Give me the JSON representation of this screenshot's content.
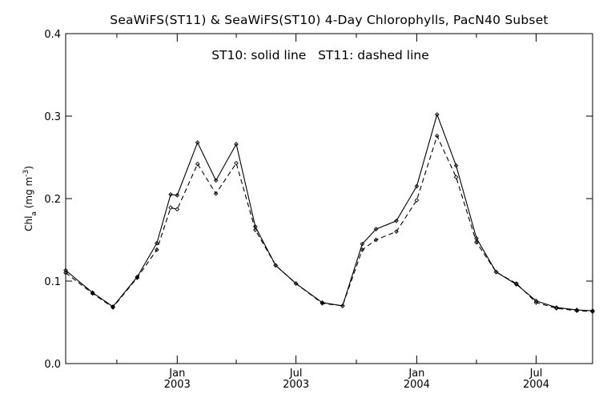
{
  "chart_data": {
    "type": "line",
    "title": "SeaWiFS(ST11) & SeaWiFS(ST10) 4-Day Chlorophylls, PacN40 Subset",
    "annotation": "ST10: solid line   ST11: dashed line",
    "ylabel": {
      "base": "Chl",
      "sub": "a",
      "mid": " (mg m",
      "sup": "-3",
      "end": ")"
    },
    "xlim": [
      "2002-07-15",
      "2004-09-25"
    ],
    "ylim": [
      0.0,
      0.4
    ],
    "yticks": [
      {
        "value": 0.0,
        "label": "0.0"
      },
      {
        "value": 0.1,
        "label": "0.1"
      },
      {
        "value": 0.2,
        "label": "0.2"
      },
      {
        "value": 0.3,
        "label": "0.3"
      },
      {
        "value": 0.4,
        "label": "0.4"
      }
    ],
    "xticks_major": [
      {
        "date": "2003-01-01",
        "label1": "Jan",
        "label2": "2003"
      },
      {
        "date": "2003-07-01",
        "label1": "Jul",
        "label2": "2003"
      },
      {
        "date": "2004-01-01",
        "label1": "Jan",
        "label2": "2004"
      },
      {
        "date": "2004-07-01",
        "label1": "Jul",
        "label2": "2004"
      }
    ],
    "xticks_minor": [
      "2002-10-01",
      "2003-04-01",
      "2003-10-01",
      "2004-04-01"
    ],
    "series": [
      {
        "name": "ST10",
        "style": "solid",
        "x": [
          "2002-07-15",
          "2002-08-25",
          "2002-09-25",
          "2002-11-01",
          "2002-12-01",
          "2002-12-22",
          "2003-01-01",
          "2003-02-01",
          "2003-03-01",
          "2003-04-01",
          "2003-04-30",
          "2003-05-31",
          "2003-07-01",
          "2003-08-10",
          "2003-09-10",
          "2003-10-10",
          "2003-10-31",
          "2003-12-01",
          "2004-01-01",
          "2004-02-01",
          "2004-03-01",
          "2004-04-01",
          "2004-05-01",
          "2004-06-01",
          "2004-07-01",
          "2004-08-01",
          "2004-09-01",
          "2004-09-25"
        ],
        "y": [
          0.113,
          0.086,
          0.069,
          0.105,
          0.146,
          0.205,
          0.204,
          0.268,
          0.222,
          0.266,
          0.166,
          0.119,
          0.097,
          0.074,
          0.07,
          0.145,
          0.163,
          0.173,
          0.215,
          0.302,
          0.24,
          0.152,
          0.111,
          0.096,
          0.076,
          0.068,
          0.065,
          0.064
        ]
      },
      {
        "name": "ST11",
        "style": "dashed",
        "x": [
          "2002-07-15",
          "2002-08-25",
          "2002-09-25",
          "2002-11-01",
          "2002-12-01",
          "2002-12-22",
          "2003-01-01",
          "2003-02-01",
          "2003-03-01",
          "2003-04-01",
          "2003-04-30",
          "2003-05-31",
          "2003-07-01",
          "2003-08-10",
          "2003-09-10",
          "2003-10-10",
          "2003-10-31",
          "2003-12-01",
          "2004-01-01",
          "2004-02-01",
          "2004-03-01",
          "2004-04-01",
          "2004-05-01",
          "2004-06-01",
          "2004-07-01",
          "2004-08-01",
          "2004-09-01",
          "2004-09-25"
        ],
        "y": [
          0.11,
          0.085,
          0.068,
          0.104,
          0.138,
          0.189,
          0.187,
          0.242,
          0.206,
          0.243,
          0.162,
          0.119,
          0.097,
          0.073,
          0.07,
          0.138,
          0.15,
          0.16,
          0.198,
          0.276,
          0.226,
          0.147,
          0.111,
          0.097,
          0.074,
          0.067,
          0.064,
          0.063
        ]
      }
    ],
    "grid": false,
    "legend": "none"
  }
}
